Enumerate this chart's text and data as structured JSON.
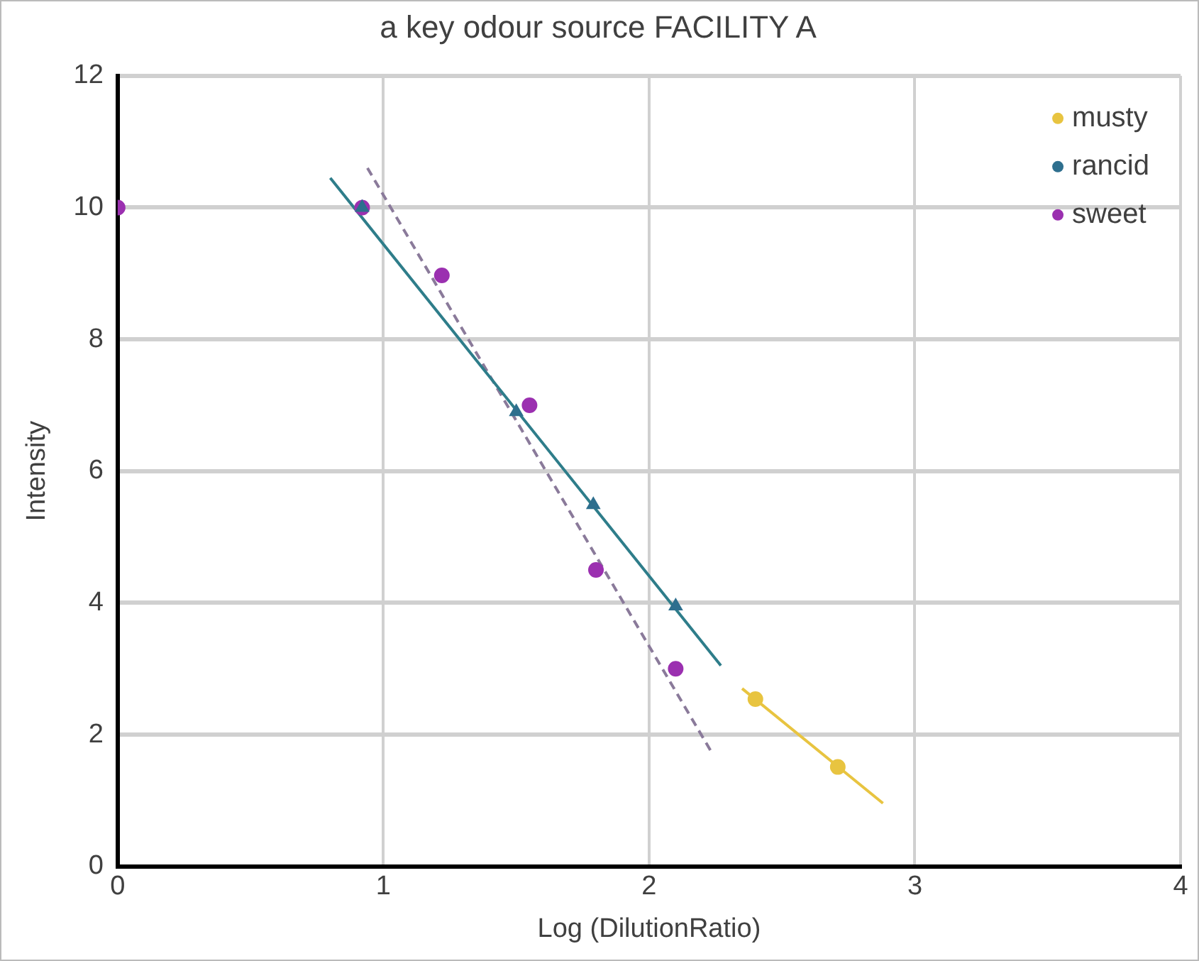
{
  "chart_data": {
    "type": "scatter",
    "title": "a key odour source FACILITY A",
    "xlabel": "Log (DilutionRatio)",
    "ylabel": "Intensity",
    "xlim": [
      0,
      4
    ],
    "xticks": [
      0,
      1,
      2,
      3,
      4
    ],
    "ylim": [
      0,
      12
    ],
    "yticks": [
      0,
      2,
      4,
      6,
      8,
      10,
      12
    ],
    "grid": true,
    "legend": "top right",
    "series": [
      {
        "name": "musty",
        "color": "#e8c440",
        "marker": "circle",
        "x": [
          2.4,
          2.71
        ],
        "values": [
          2.54,
          1.51
        ]
      },
      {
        "name": "rancid",
        "color": "#2e6f8e",
        "marker": "triangle",
        "x": [
          0.92,
          1.5,
          1.79,
          2.1
        ],
        "values": [
          10,
          6.9,
          5.49,
          3.95
        ]
      },
      {
        "name": "sweet",
        "color": "#9b30b0",
        "marker": "circle",
        "x": [
          0,
          0.92,
          1.22,
          1.55,
          1.8,
          2.1
        ],
        "values": [
          10,
          10,
          8.97,
          7,
          4.5,
          3
        ]
      },
      {
        "type": "line",
        "color": "#e8c440",
        "marker": "none",
        "line_style": "solid",
        "x": [
          2.35,
          2.88
        ],
        "values": [
          2.7,
          0.96
        ]
      },
      {
        "type": "line",
        "color": "#2e7d8a",
        "marker": "none",
        "line_style": "solid",
        "x": [
          0.8,
          2.27
        ],
        "values": [
          10.45,
          3.05
        ]
      },
      {
        "type": "line",
        "color": "#8a7a9a",
        "marker": "none",
        "line_style": "dashed",
        "x": [
          0.94,
          2.24
        ],
        "values": [
          10.6,
          1.7
        ]
      }
    ]
  }
}
